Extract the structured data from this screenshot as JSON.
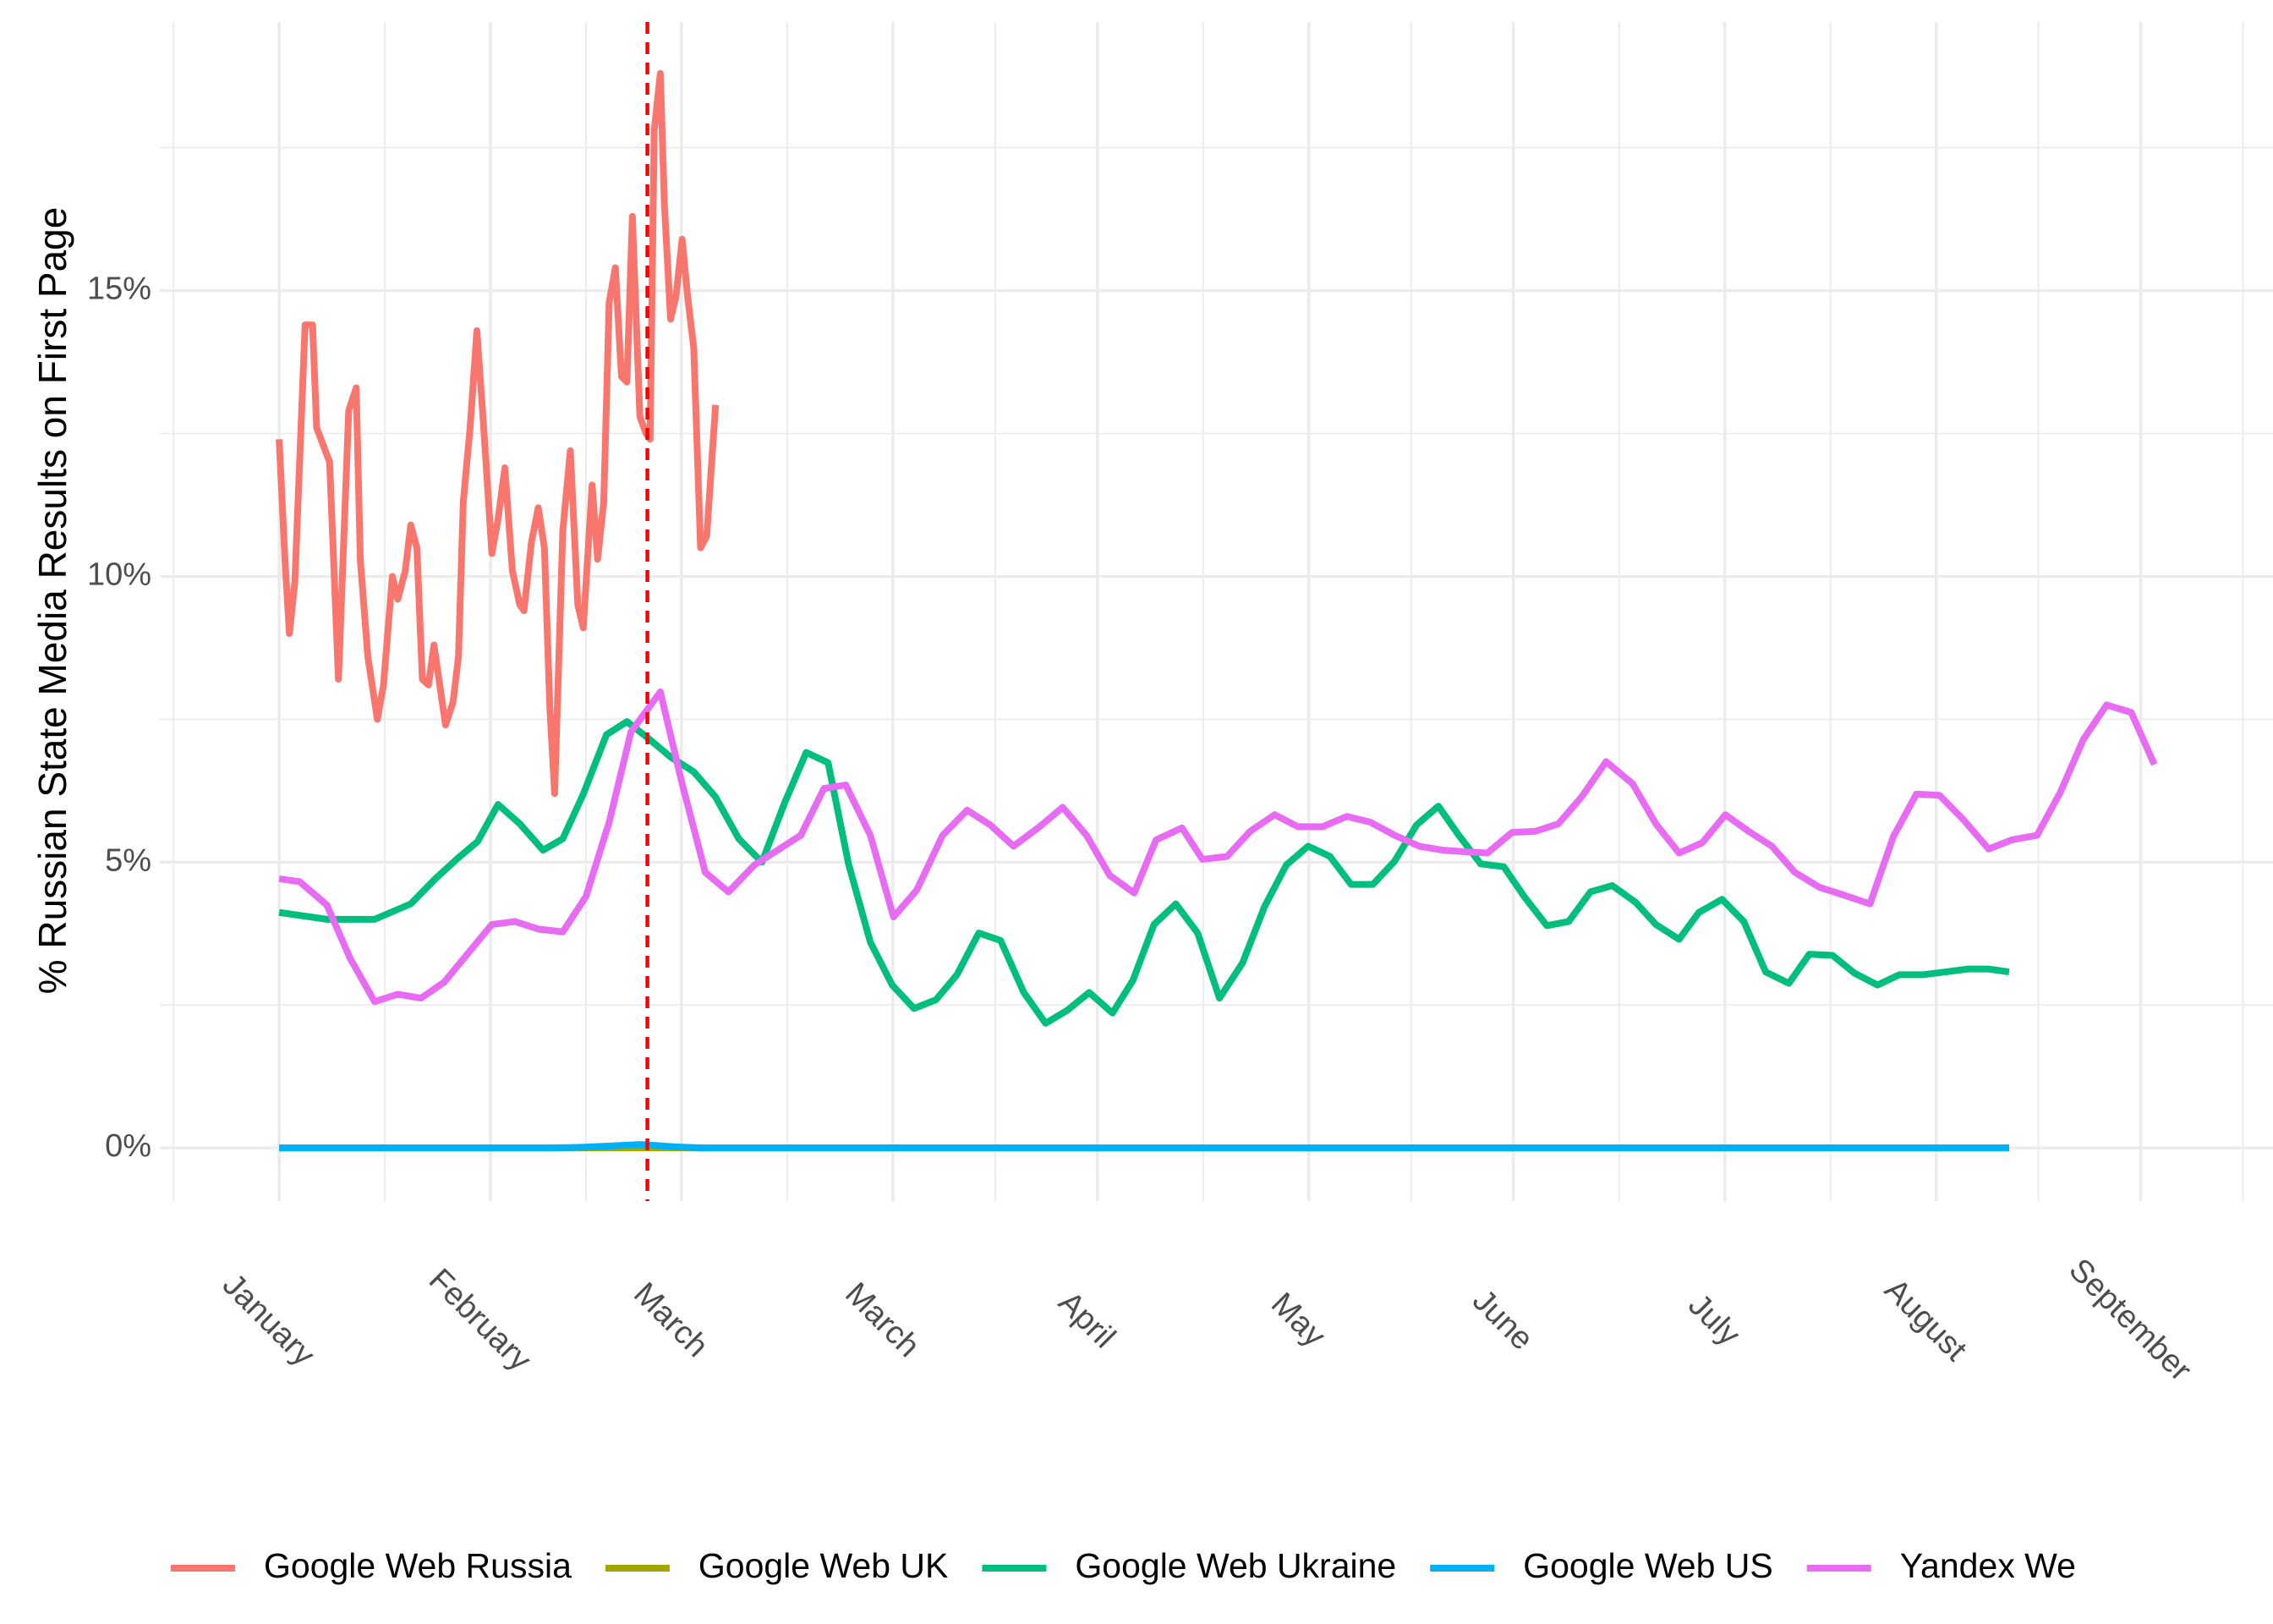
{
  "chart_data": {
    "type": "line",
    "y_label": "% Russian State Media Results on First Page",
    "xlim": [
      -17.5,
      292.4
    ],
    "xticks": [
      {
        "value": 0,
        "label": "January"
      },
      {
        "value": 31,
        "label": "February"
      },
      {
        "value": 59,
        "label": "March"
      },
      {
        "value": 90,
        "label": "March"
      },
      {
        "value": 120,
        "label": "April"
      },
      {
        "value": 151,
        "label": "May"
      },
      {
        "value": 181,
        "label": "June"
      },
      {
        "value": 212,
        "label": "July"
      },
      {
        "value": 243,
        "label": "August"
      },
      {
        "value": 273,
        "label": "September"
      }
    ],
    "ylim": [
      -0.93,
      19.7
    ],
    "yticks": [
      {
        "value": 0,
        "label": "0%"
      },
      {
        "value": 5,
        "label": "5%"
      },
      {
        "value": 10,
        "label": "10%"
      },
      {
        "value": 15,
        "label": "15%"
      }
    ],
    "grid": true,
    "vline": {
      "x": 54,
      "color": "#ff0000"
    },
    "legend": "bottom",
    "series": [
      {
        "name": "Google Web Russia",
        "color": "#f8766d",
        "x": [
          0,
          0.85,
          1.5,
          2.3,
          3.8,
          4.9,
          5.5,
          7.4,
          8.7,
          10.2,
          11.3,
          11.9,
          13,
          14.4,
          15.3,
          16.6,
          17.4,
          18.5,
          19.3,
          20.2,
          21,
          21.9,
          22.7,
          24.4,
          25.5,
          26.3,
          27,
          28,
          29,
          30,
          31.2,
          32.1,
          33.1,
          34.2,
          35.3,
          35.9,
          37,
          38,
          38.9,
          39.7,
          40.4,
          41.6,
          42.7,
          43.8,
          44.6,
          45.9,
          46.7,
          47.6,
          48.4,
          49.3,
          50.2,
          51,
          51.8,
          52.9,
          53.8,
          54.4,
          55,
          55.9,
          56.5,
          57.4,
          58.2,
          59.1,
          59.9,
          60.8,
          61.8,
          62.7,
          64
        ],
        "values": [
          12.4,
          10.3,
          9.0,
          9.9,
          14.4,
          14.4,
          12.6,
          12.0,
          8.2,
          12.9,
          13.3,
          10.3,
          8.6,
          7.5,
          8.1,
          10.0,
          9.6,
          10.1,
          10.9,
          10.5,
          8.2,
          8.1,
          8.8,
          7.4,
          7.8,
          8.6,
          11.3,
          12.6,
          14.3,
          12.6,
          10.4,
          11.0,
          11.9,
          10.1,
          9.5,
          9.4,
          10.6,
          11.2,
          10.5,
          7.7,
          6.2,
          10.8,
          12.2,
          9.5,
          9.1,
          11.6,
          10.3,
          11.3,
          14.8,
          15.4,
          13.5,
          13.4,
          16.3,
          12.8,
          12.5,
          12.4,
          17.8,
          18.8,
          16.5,
          14.5,
          14.9,
          15.9,
          14.9,
          14.0,
          10.5,
          10.7,
          13.0
        ]
      },
      {
        "name": "Google Web UK",
        "color": "#a3a500",
        "x": [
          0,
          253.7
        ],
        "values": [
          0,
          0
        ]
      },
      {
        "name": "Google Web Ukraine",
        "color": "#00bf7d",
        "x": [
          0,
          7,
          14,
          19.3,
          22.9,
          26.3,
          29.1,
          32.1,
          35.3,
          38.7,
          41.6,
          44.6,
          48,
          51,
          54,
          57.4,
          60.8,
          64,
          67.4,
          70.8,
          74.2,
          77.3,
          80.5,
          83.5,
          86.7,
          89.9,
          93.1,
          96.3,
          99.4,
          102.6,
          105.8,
          109.2,
          112.4,
          115.6,
          118.8,
          122.2,
          125.2,
          128.3,
          131.5,
          134.7,
          137.9,
          141.3,
          144.5,
          147.7,
          150.9,
          154.1,
          157.2,
          160.4,
          163.6,
          166.8,
          170,
          173,
          176.2,
          179.6,
          182.7,
          185.9,
          189.1,
          192.3,
          195.5,
          198.9,
          201.9,
          205.3,
          208.2,
          211.6,
          214.8,
          218,
          221.4,
          224.4,
          227.8,
          231,
          234.4,
          237.6,
          241,
          244.4,
          247.6,
          250.7,
          253.7
        ],
        "values": [
          4.12,
          4.0,
          4.0,
          4.27,
          4.71,
          5.08,
          5.36,
          6.01,
          5.67,
          5.21,
          5.41,
          6.19,
          7.23,
          7.46,
          7.18,
          6.84,
          6.58,
          6.14,
          5.41,
          5.0,
          6.06,
          6.92,
          6.74,
          4.97,
          3.6,
          2.85,
          2.44,
          2.59,
          3.03,
          3.76,
          3.63,
          2.72,
          2.18,
          2.41,
          2.72,
          2.36,
          2.93,
          3.91,
          4.27,
          3.76,
          2.62,
          3.24,
          4.22,
          4.95,
          5.28,
          5.1,
          4.61,
          4.61,
          5.02,
          5.65,
          5.98,
          5.47,
          4.97,
          4.92,
          4.38,
          3.89,
          3.96,
          4.48,
          4.59,
          4.3,
          3.91,
          3.65,
          4.12,
          4.35,
          3.96,
          3.08,
          2.88,
          3.39,
          3.37,
          3.06,
          2.85,
          3.03,
          3.03,
          3.08,
          3.13,
          3.13,
          3.08
        ]
      },
      {
        "name": "Google Web US",
        "color": "#00b0f6",
        "x": [
          0,
          40,
          44,
          48,
          53,
          58,
          62,
          253.7
        ],
        "values": [
          0,
          0,
          0.01,
          0.03,
          0.06,
          0.02,
          0,
          0
        ]
      },
      {
        "name": "Yandex We",
        "color": "#e76bf3",
        "x": [
          0,
          3,
          7,
          10.4,
          14,
          17.4,
          20.8,
          24.2,
          27.6,
          31.2,
          34.6,
          38,
          41.6,
          45,
          48.4,
          51.6,
          55.9,
          59.1,
          62.5,
          65.9,
          69.7,
          76.5,
          79.9,
          83.1,
          86.7,
          90.1,
          93.5,
          97.3,
          100.9,
          104.3,
          107.7,
          111.3,
          114.9,
          118.4,
          121.8,
          125.4,
          128.6,
          132.4,
          135.4,
          139,
          142.4,
          146,
          149.4,
          153,
          156.6,
          160,
          163.6,
          167.2,
          170.6,
          174.2,
          177.2,
          180.8,
          184.2,
          187.6,
          191,
          194.6,
          198.5,
          201.9,
          205.3,
          208.7,
          212.1,
          215.5,
          218.9,
          222.3,
          225.9,
          229.3,
          233.3,
          236.7,
          240.1,
          243.5,
          247.1,
          250.7,
          254.1,
          257.8,
          261.2,
          264.6,
          268,
          271.6,
          275
        ],
        "values": [
          4.71,
          4.66,
          4.25,
          3.32,
          2.56,
          2.69,
          2.62,
          2.9,
          3.39,
          3.91,
          3.96,
          3.83,
          3.78,
          4.4,
          5.7,
          7.28,
          7.98,
          6.37,
          4.82,
          4.48,
          4.95,
          5.47,
          6.29,
          6.35,
          5.47,
          4.04,
          4.51,
          5.47,
          5.91,
          5.65,
          5.28,
          5.6,
          5.96,
          5.47,
          4.77,
          4.46,
          5.39,
          5.6,
          5.05,
          5.1,
          5.54,
          5.83,
          5.62,
          5.62,
          5.8,
          5.7,
          5.47,
          5.28,
          5.21,
          5.18,
          5.16,
          5.52,
          5.54,
          5.67,
          6.14,
          6.76,
          6.37,
          5.67,
          5.16,
          5.34,
          5.83,
          5.54,
          5.28,
          4.82,
          4.56,
          4.43,
          4.27,
          5.44,
          6.19,
          6.17,
          5.73,
          5.23,
          5.39,
          5.47,
          6.22,
          7.15,
          7.75,
          7.62,
          6.71
        ]
      }
    ]
  }
}
